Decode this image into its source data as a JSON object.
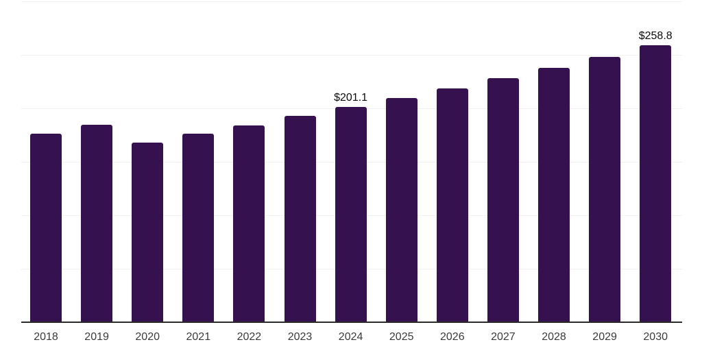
{
  "chart_data": {
    "type": "bar",
    "title": "",
    "xlabel": "",
    "ylabel": "",
    "categories": [
      "2018",
      "2019",
      "2020",
      "2021",
      "2022",
      "2023",
      "2024",
      "2025",
      "2026",
      "2027",
      "2028",
      "2029",
      "2030"
    ],
    "values": [
      176.6,
      184.5,
      168.1,
      176.1,
      183.9,
      193.0,
      201.1,
      209.7,
      218.7,
      228.1,
      237.9,
      248.1,
      258.8
    ],
    "data_labels": [
      "",
      "",
      "",
      "",
      "",
      "",
      "$201.1",
      "",
      "",
      "",
      "",
      "",
      "$258.8"
    ],
    "value_prefix": "$",
    "ylim": [
      0,
      300
    ],
    "ytick_step": 50,
    "ytick_labels_shown": false,
    "grid": "horizontal",
    "legend_position": "none",
    "colors": {
      "bar": "#36114F",
      "axis_line": "#2B2B2B",
      "gridline": "#F1F1F1",
      "tick_label": "#3A3A3A",
      "data_label": "#0C0C0C",
      "background": "#FFFFFF"
    }
  }
}
